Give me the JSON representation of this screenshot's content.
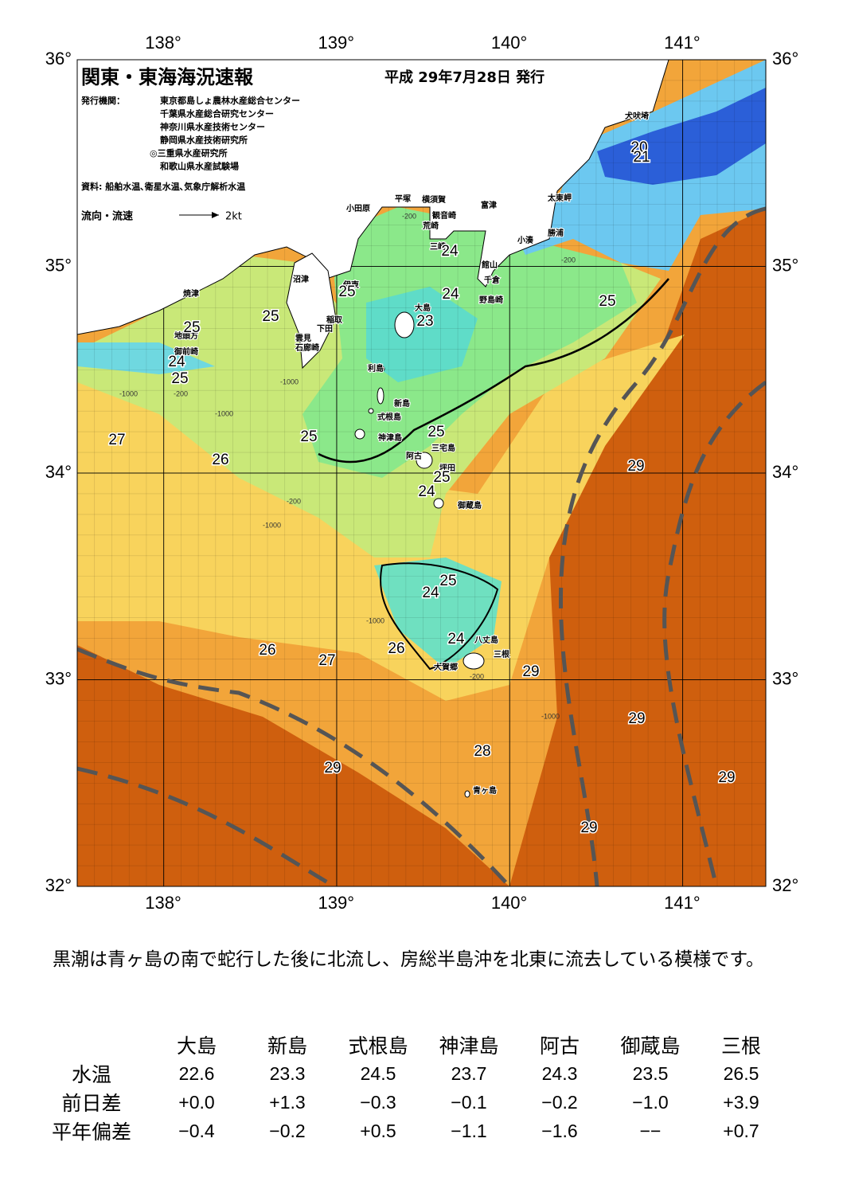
{
  "header": {
    "title": "関東・東海海況速報",
    "date": "平成 29年7月28日 発行",
    "publisher_label": "発行機関：",
    "publishers": [
      "東京都島しょ農林水産総合センター",
      "千葉県水産総合研究センター",
      "神奈川県水産技術センター",
      "静岡県水産技術研究所",
      "◎三重県水産研究所",
      "和歌山県水産試験場"
    ],
    "source": "資料: 船舶水温､衛星水温､気象庁解析水温",
    "flow_legend": "流向・流速",
    "flow_unit": "2kt"
  },
  "axes": {
    "lon_labels": [
      "138°",
      "139°",
      "140°",
      "141°"
    ],
    "lat_labels": [
      "36°",
      "35°",
      "34°",
      "33°",
      "32°"
    ]
  },
  "places": [
    "犬吠埼",
    "太東岬",
    "勝浦",
    "小湊",
    "富津",
    "平塚",
    "横須賀",
    "観音崎",
    "荒崎",
    "三崎",
    "館山",
    "千倉",
    "野島崎",
    "小田原",
    "沼津",
    "伊東",
    "稲取",
    "下田",
    "雲見",
    "石廊崎",
    "焼津",
    "地頭方",
    "御前崎",
    "大島",
    "利島",
    "新島",
    "式根島",
    "神津島",
    "三宅島",
    "阿古",
    "坪田",
    "御蔵島",
    "八丈島",
    "三根",
    "大賀郷",
    "青ヶ島"
  ],
  "isotherm_labels": [
    "20",
    "21",
    "25",
    "24",
    "24",
    "23",
    "25",
    "25",
    "25",
    "24",
    "25",
    "25",
    "25",
    "25",
    "24",
    "27",
    "26",
    "29",
    "25",
    "24",
    "24",
    "26",
    "27",
    "26",
    "29",
    "29",
    "28",
    "29",
    "29",
    "29"
  ],
  "depth_labels": [
    "-200",
    "-200",
    "-1000",
    "-200",
    "-1000",
    "-1000",
    "-200",
    "-1000",
    "-1000",
    "-1000",
    "-200"
  ],
  "paragraph": "黒潮は青ヶ島の南で蛇行した後に北流し、房総半島沖を北東に流去している模様です。",
  "table": {
    "columns": [
      "大島",
      "新島",
      "式根島",
      "神津島",
      "阿古",
      "御蔵島",
      "三根"
    ],
    "rows": [
      {
        "label": "水温",
        "values": [
          "22.6",
          "23.3",
          "24.5",
          "23.7",
          "24.3",
          "23.5",
          "26.5"
        ]
      },
      {
        "label": "前日差",
        "values": [
          "+0.0",
          "+1.3",
          "−0.3",
          "−0.1",
          "−0.2",
          "−1.0",
          "+3.9"
        ]
      },
      {
        "label": "平年偏差",
        "values": [
          "−0.4",
          "−0.2",
          "+0.5",
          "−1.1",
          "−1.6",
          "−−",
          "+0.7"
        ]
      }
    ]
  }
}
